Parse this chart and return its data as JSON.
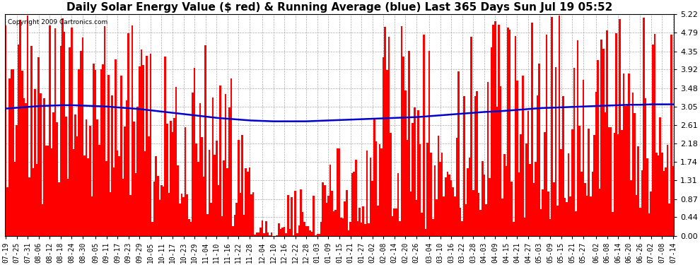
{
  "title": "Daily Solar Energy Value ($ red) & Running Average (blue) Last 365 Days Sun Jul 19 05:52",
  "copyright": "Copyright 2009 Cartronics.com",
  "ylim": [
    0,
    5.22
  ],
  "yticks": [
    0.0,
    0.44,
    0.87,
    1.31,
    1.74,
    2.18,
    2.61,
    3.05,
    3.48,
    3.92,
    4.35,
    4.79,
    5.22
  ],
  "bar_color": "#ff0000",
  "avg_color": "#0000cc",
  "bg_color": "#ffffff",
  "grid_color": "#aaaaaa",
  "title_fontsize": 11,
  "x_dates": [
    "07-19",
    "07-25",
    "07-31",
    "08-06",
    "08-12",
    "08-18",
    "08-24",
    "08-30",
    "09-05",
    "09-11",
    "09-17",
    "09-23",
    "09-29",
    "10-05",
    "10-11",
    "10-17",
    "10-23",
    "10-29",
    "11-04",
    "11-10",
    "11-16",
    "11-22",
    "11-28",
    "12-04",
    "12-10",
    "12-16",
    "12-22",
    "12-28",
    "01-03",
    "01-09",
    "01-15",
    "01-21",
    "01-27",
    "02-02",
    "02-08",
    "02-14",
    "02-20",
    "02-26",
    "03-04",
    "03-10",
    "03-16",
    "03-22",
    "03-28",
    "04-03",
    "04-09",
    "04-15",
    "04-21",
    "04-27",
    "05-03",
    "05-09",
    "05-15",
    "05-21",
    "05-27",
    "06-02",
    "06-08",
    "06-14",
    "06-20",
    "06-26",
    "07-02",
    "07-08",
    "07-14"
  ],
  "avg_y": [
    3.0,
    3.02,
    3.04,
    3.06,
    3.07,
    3.08,
    3.08,
    3.07,
    3.06,
    3.05,
    3.03,
    3.01,
    2.99,
    2.96,
    2.93,
    2.9,
    2.87,
    2.84,
    2.81,
    2.78,
    2.76,
    2.74,
    2.72,
    2.71,
    2.7,
    2.7,
    2.7,
    2.7,
    2.71,
    2.72,
    2.73,
    2.74,
    2.75,
    2.76,
    2.77,
    2.78,
    2.79,
    2.8,
    2.82,
    2.84,
    2.86,
    2.88,
    2.9,
    2.92,
    2.93,
    2.95,
    2.97,
    2.99,
    3.01,
    3.02,
    3.03,
    3.04,
    3.05,
    3.06,
    3.07,
    3.08,
    3.09,
    3.09,
    3.1,
    3.1,
    3.1
  ]
}
